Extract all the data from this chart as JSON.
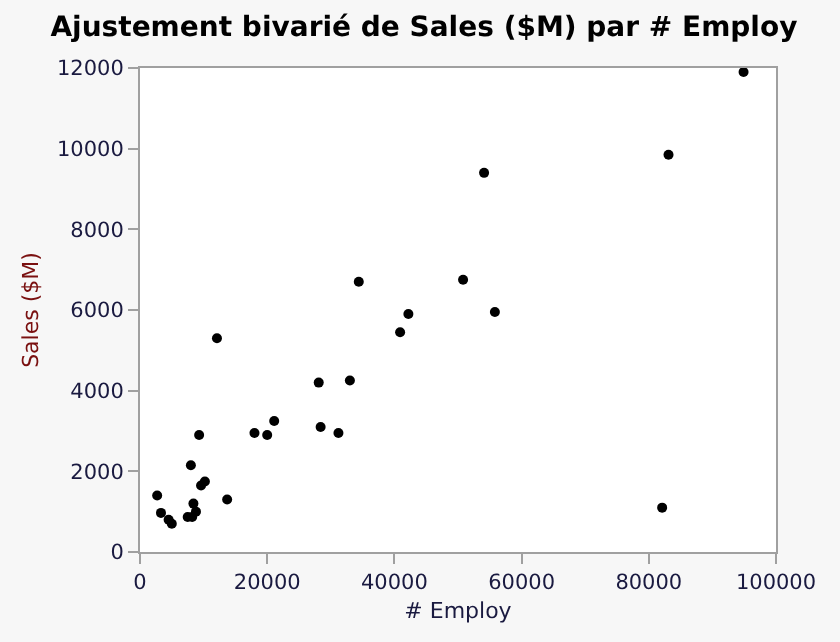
{
  "chart_data": {
    "type": "scatter",
    "title": "Ajustement bivarié de Sales ($M) par # Employ",
    "xlabel": "# Employ",
    "ylabel": "Sales ($M)",
    "x": [
      34400,
      50800,
      55800,
      42200,
      40900,
      12100,
      28100,
      33000,
      21100,
      18000,
      20000,
      28400,
      31200,
      9300,
      8000,
      10200,
      9600,
      2700,
      13700,
      3300,
      8400,
      8800,
      7500,
      8200,
      4500,
      5000,
      82100,
      94900,
      83100,
      54100
    ],
    "values": [
      6700,
      6750,
      5950,
      5900,
      5450,
      5300,
      4200,
      4250,
      3250,
      2950,
      2900,
      3100,
      2950,
      2900,
      2150,
      1750,
      1650,
      1400,
      1300,
      970,
      1200,
      1000,
      870,
      870,
      800,
      700,
      1100,
      11900,
      9850,
      9400
    ],
    "color": "#000000",
    "marker": "circle",
    "xlim": [
      0,
      100000
    ],
    "xticks": [
      0,
      20000,
      40000,
      60000,
      80000,
      100000
    ],
    "ylim": [
      0,
      12000
    ],
    "yticks": [
      0,
      2000,
      4000,
      6000,
      8000,
      10000,
      12000
    ]
  }
}
